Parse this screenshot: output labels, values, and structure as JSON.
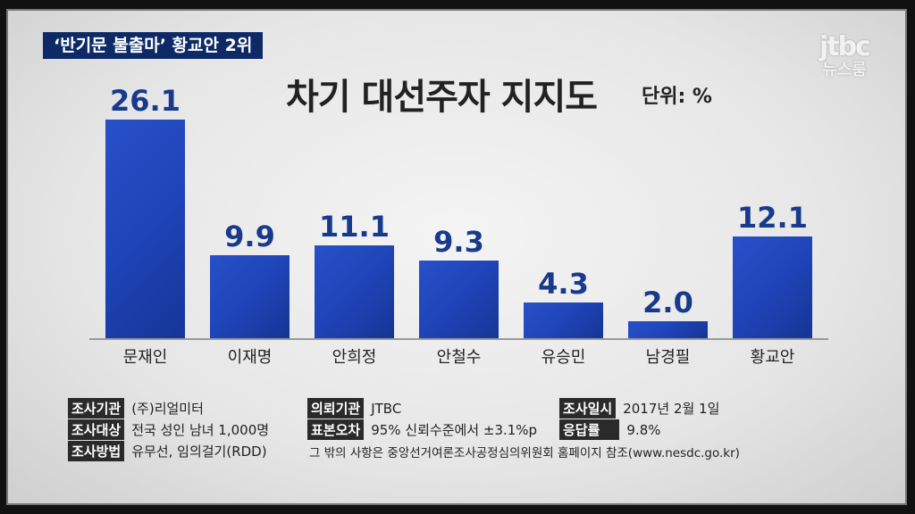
{
  "header": {
    "badge": "‘반기문 불출마’ 황교안 2위",
    "logo_top": "jtbc",
    "logo_bottom": "뉴스룸"
  },
  "chart_data": {
    "type": "bar",
    "title": "차기 대선주자 지지도",
    "unit": "단위: %",
    "categories": [
      "문재인",
      "이재명",
      "안희정",
      "안철수",
      "유승민",
      "남경필",
      "황교안"
    ],
    "values": [
      26.1,
      9.9,
      11.1,
      9.3,
      4.3,
      2.0,
      12.1
    ],
    "value_labels": [
      "26.1",
      "9.9",
      "11.1",
      "9.3",
      "4.3",
      "2.0",
      "12.1"
    ],
    "ylim": [
      0,
      26.1
    ],
    "bar_color": "#1f44b8"
  },
  "footer": {
    "rows": [
      [
        {
          "tag": "조사기관",
          "text": "(주)리얼미터"
        },
        {
          "tag": "의뢰기관",
          "text": "JTBC"
        },
        {
          "tag": "조사일시",
          "text": "2017년 2월 1일"
        }
      ],
      [
        {
          "tag": "조사대상",
          "text": "전국 성인 남녀 1,000명"
        },
        {
          "tag": "표본오차",
          "text": "95% 신뢰수준에서 ±3.1%p"
        },
        {
          "tag": "응답률",
          "text": "9.8%"
        }
      ],
      [
        {
          "tag": "조사방법",
          "text": "유무선, 임의걸기(RDD)"
        }
      ]
    ],
    "note": "그 밖의 사항은 중앙선거여론조사공정심의위원회 홈페이지 참조(www.nesdc.go.kr)"
  }
}
